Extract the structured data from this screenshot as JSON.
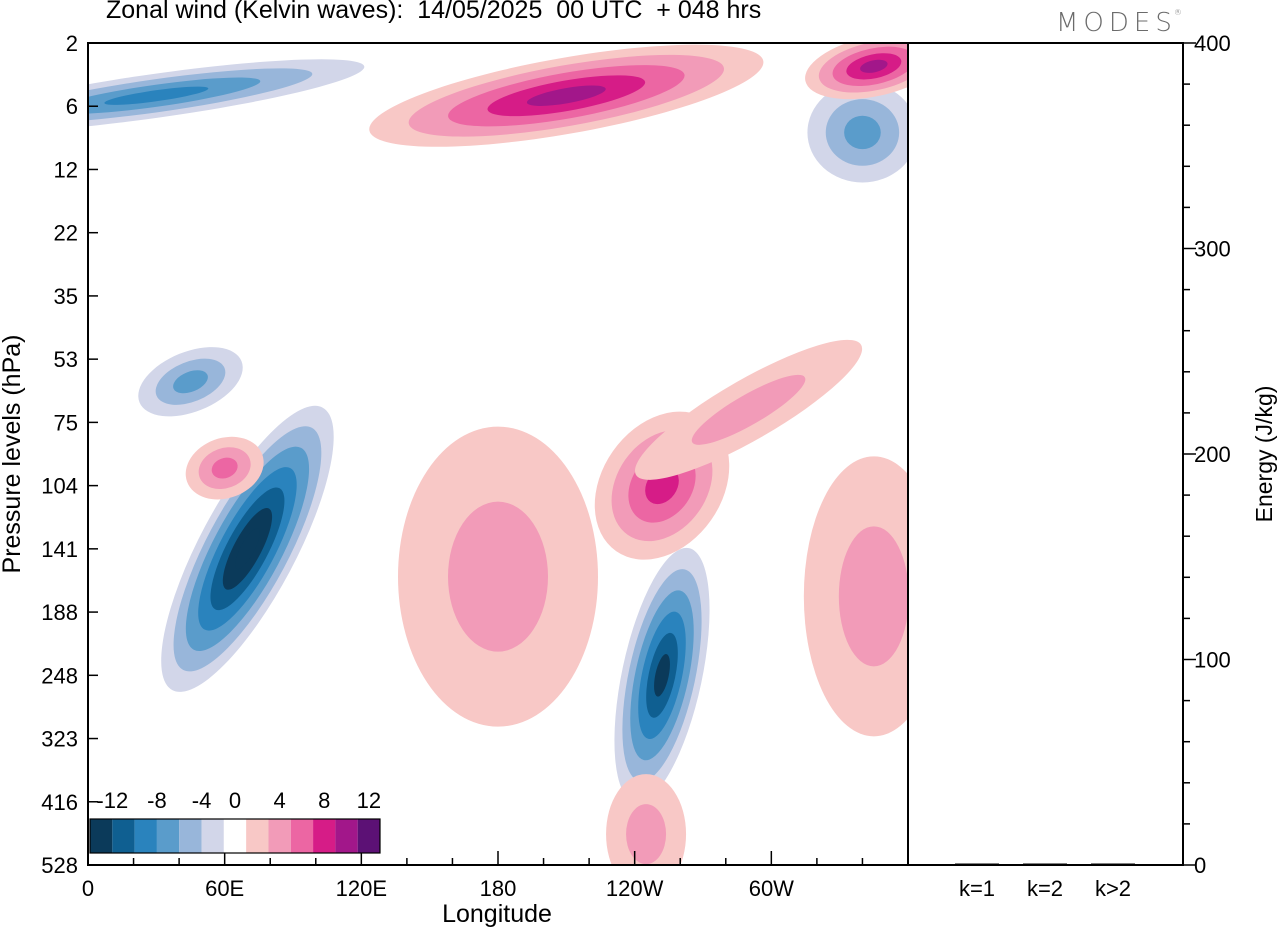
{
  "header": {
    "title": "Zonal wind (Kelvin waves):  14/05/2025  00 UTC  + 048 hrs",
    "brand": "MODES",
    "brand_mark": "®"
  },
  "chart_data": [
    {
      "type": "heatmap",
      "xlabel": "Longitude",
      "ylabel": "Pressure levels (hPa)",
      "x_ticks": [
        "0",
        "60E",
        "120E",
        "180",
        "120W",
        "60W"
      ],
      "y_ticks": [
        "2",
        "6",
        "12",
        "22",
        "35",
        "53",
        "75",
        "104",
        "141",
        "188",
        "248",
        "323",
        "416",
        "528"
      ],
      "colorbar": {
        "tick_labels": [
          "-12",
          "-8",
          "-4",
          "0",
          "4",
          "8",
          "12"
        ],
        "levels": [
          -14,
          -12,
          -10,
          -8,
          -6,
          -4,
          -2,
          2,
          4,
          6,
          8,
          10,
          12,
          14
        ],
        "colors": [
          "#0b3a5a",
          "#0f5f91",
          "#2a83bd",
          "#5a9ccb",
          "#98b6da",
          "#d2d6e9",
          "#ffffff",
          "#f8c8c6",
          "#f29bb8",
          "#ec66a3",
          "#d61c87",
          "#a2178a",
          "#5c1175"
        ]
      },
      "features": [
        {
          "sign": "negative",
          "lon": 70,
          "plev": 141,
          "peak": -14
        },
        {
          "sign": "negative",
          "lon": 252,
          "plev": 248,
          "peak": -12
        },
        {
          "sign": "negative",
          "lon": 45,
          "plev": 60,
          "peak": -6
        },
        {
          "sign": "negative",
          "lon": 30,
          "plev": 5,
          "peak": -8
        },
        {
          "sign": "negative",
          "lon": 340,
          "plev": 8,
          "peak": -6
        },
        {
          "sign": "positive",
          "lon": 252,
          "plev": 104,
          "peak": 8
        },
        {
          "sign": "positive",
          "lon": 210,
          "plev": 5,
          "peak": 10
        },
        {
          "sign": "positive",
          "lon": 345,
          "plev": 3,
          "peak": 10
        },
        {
          "sign": "positive",
          "lon": 60,
          "plev": 95,
          "peak": 6
        },
        {
          "sign": "positive",
          "lon": 290,
          "plev": 70,
          "peak": 4
        },
        {
          "sign": "positive",
          "lon": 180,
          "plev": 160,
          "peak": 4
        },
        {
          "sign": "positive",
          "lon": 345,
          "plev": 175,
          "peak": 4
        },
        {
          "sign": "positive",
          "lon": 245,
          "plev": 470,
          "peak": 4
        }
      ]
    },
    {
      "type": "bar",
      "ylabel": "Energy (J/kg)",
      "categories": [
        "k=1",
        "k=2",
        "k>2"
      ],
      "values": [
        0.3,
        0.6,
        0.5
      ],
      "ylim": [
        0,
        400
      ],
      "y_ticks": [
        "0",
        "100",
        "200",
        "300",
        "400"
      ]
    }
  ]
}
